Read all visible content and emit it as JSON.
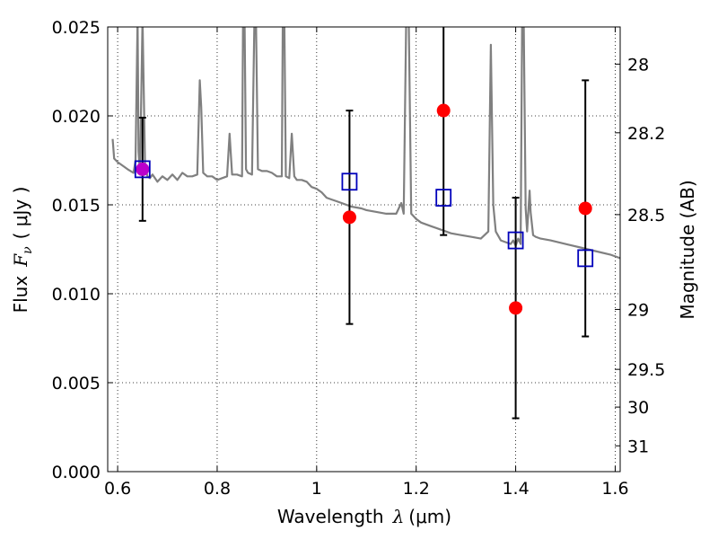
{
  "chart_data": {
    "type": "scatter",
    "xlabel_text": "Wavelength",
    "xlabel_symbol": "λ",
    "xlabel_unit": "(μm)",
    "ylabel_text": "Flux",
    "ylabel_symbol": "F",
    "ylabel_subscript": "ν",
    "ylabel_unit": "( μJy )",
    "y2label": "Magnitude (AB)",
    "xlim": [
      0.58,
      1.61
    ],
    "ylim": [
      0.0,
      0.025
    ],
    "grid": true,
    "x_ticks": [
      {
        "value": 0.6,
        "label": "0.6"
      },
      {
        "value": 0.8,
        "label": "0.8"
      },
      {
        "value": 1.0,
        "label": "1"
      },
      {
        "value": 1.2,
        "label": "1.2"
      },
      {
        "value": 1.4,
        "label": "1.4"
      },
      {
        "value": 1.6,
        "label": "1.6"
      }
    ],
    "y_ticks": [
      {
        "value": 0.0,
        "label": "0.000"
      },
      {
        "value": 0.005,
        "label": "0.005"
      },
      {
        "value": 0.01,
        "label": "0.010"
      },
      {
        "value": 0.015,
        "label": "0.015"
      },
      {
        "value": 0.02,
        "label": "0.020"
      },
      {
        "value": 0.025,
        "label": "0.025"
      }
    ],
    "y2_ticks": [
      {
        "flux": 0.02291,
        "label": "28"
      },
      {
        "flux": 0.01905,
        "label": "28.2"
      },
      {
        "flux": 0.01445,
        "label": "28.5"
      },
      {
        "flux": 0.00912,
        "label": "29"
      },
      {
        "flux": 0.00575,
        "label": "29.5"
      },
      {
        "flux": 0.00363,
        "label": "30"
      },
      {
        "flux": 0.00145,
        "label": "31"
      }
    ],
    "series": [
      {
        "kind": "model-spectrum",
        "color": "#808080",
        "x": [
          0.59,
          0.593,
          0.6,
          0.61,
          0.62,
          0.632,
          0.636,
          0.64,
          0.642,
          0.645,
          0.65,
          0.655,
          0.66,
          0.665,
          0.67,
          0.68,
          0.69,
          0.7,
          0.71,
          0.72,
          0.73,
          0.74,
          0.75,
          0.76,
          0.765,
          0.768,
          0.772,
          0.78,
          0.79,
          0.8,
          0.81,
          0.82,
          0.825,
          0.83,
          0.84,
          0.85,
          0.852,
          0.855,
          0.858,
          0.862,
          0.87,
          0.875,
          0.878,
          0.882,
          0.89,
          0.9,
          0.91,
          0.92,
          0.93,
          0.932,
          0.935,
          0.938,
          0.945,
          0.95,
          0.955,
          0.96,
          0.97,
          0.98,
          0.99,
          1.0,
          1.01,
          1.02,
          1.03,
          1.04,
          1.05,
          1.07,
          1.09,
          1.1,
          1.12,
          1.14,
          1.16,
          1.17,
          1.175,
          1.18,
          1.185,
          1.19,
          1.2,
          1.21,
          1.22,
          1.23,
          1.25,
          1.27,
          1.29,
          1.31,
          1.33,
          1.345,
          1.35,
          1.355,
          1.36,
          1.37,
          1.38,
          1.39,
          1.395,
          1.4,
          1.405,
          1.41,
          1.413,
          1.416,
          1.42,
          1.423,
          1.428,
          1.43,
          1.435,
          1.44,
          1.45,
          1.47,
          1.5,
          1.53,
          1.56,
          1.59,
          1.61
        ],
        "y": [
          0.0187,
          0.0176,
          0.0174,
          0.0172,
          0.017,
          0.0168,
          0.0175,
          0.0255,
          0.018,
          0.0167,
          0.0255,
          0.0172,
          0.0166,
          0.0165,
          0.0167,
          0.0163,
          0.0166,
          0.0164,
          0.0167,
          0.0164,
          0.0168,
          0.0166,
          0.0166,
          0.0167,
          0.022,
          0.0205,
          0.0168,
          0.0166,
          0.0166,
          0.0164,
          0.0165,
          0.0166,
          0.019,
          0.0167,
          0.0167,
          0.0166,
          0.0255,
          0.0255,
          0.017,
          0.0168,
          0.0167,
          0.0255,
          0.0255,
          0.017,
          0.0169,
          0.0169,
          0.0168,
          0.0166,
          0.0166,
          0.0255,
          0.0255,
          0.0166,
          0.0165,
          0.019,
          0.0166,
          0.0164,
          0.0164,
          0.0163,
          0.016,
          0.0159,
          0.0157,
          0.0154,
          0.0153,
          0.0152,
          0.0151,
          0.0149,
          0.0148,
          0.0147,
          0.0146,
          0.0145,
          0.0145,
          0.0151,
          0.0145,
          0.0255,
          0.0255,
          0.0145,
          0.0142,
          0.014,
          0.0139,
          0.0138,
          0.0136,
          0.0134,
          0.0133,
          0.0132,
          0.0131,
          0.0135,
          0.024,
          0.015,
          0.0135,
          0.013,
          0.0129,
          0.0128,
          0.013,
          0.0127,
          0.0131,
          0.0128,
          0.0255,
          0.0255,
          0.0148,
          0.0135,
          0.0158,
          0.0146,
          0.0133,
          0.0132,
          0.0131,
          0.013,
          0.0128,
          0.0126,
          0.0124,
          0.0122,
          0.012
        ]
      },
      {
        "kind": "model-photometry",
        "marker": "open-square",
        "color": "#0000bb",
        "x": [
          0.65,
          1.066,
          1.255,
          1.4,
          1.54
        ],
        "y": [
          0.017,
          0.0163,
          0.0154,
          0.013,
          0.012
        ]
      },
      {
        "kind": "observed",
        "marker": "filled-circle",
        "color": "#ff0000",
        "errorbar_color": "#000000",
        "x": [
          0.65,
          1.066,
          1.255,
          1.4,
          1.54
        ],
        "y": [
          0.017,
          0.0143,
          0.0203,
          0.0092,
          0.0148
        ],
        "yerr": [
          0.0029,
          0.006,
          0.007,
          0.0062,
          0.0072
        ]
      }
    ]
  }
}
